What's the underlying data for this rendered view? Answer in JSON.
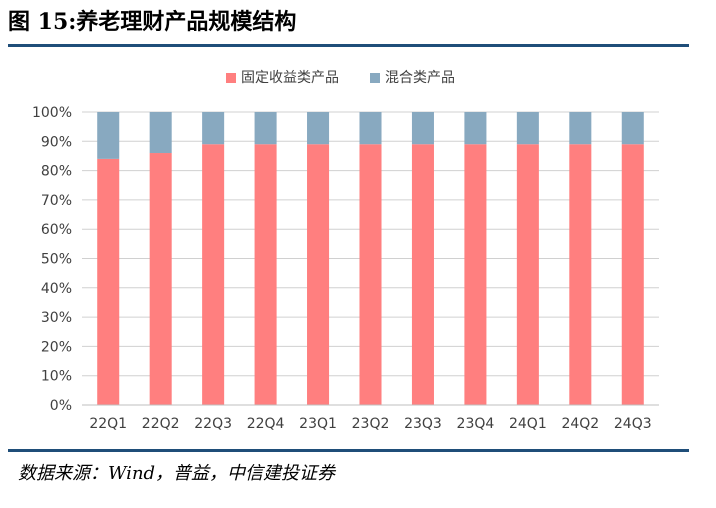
{
  "figure_title": "图 15:养老理财产品规模结构",
  "source_text": "数据来源：Wind，普益，中信建投证券",
  "colors": {
    "rule": "#1f4e79",
    "fixed_income": "#ff7f7f",
    "mixed": "#88a9c0",
    "grid": "#d0d0d0",
    "axis_text": "#404040"
  },
  "chart_data": {
    "type": "bar",
    "stacked": true,
    "percent_stacked": true,
    "categories": [
      "22Q1",
      "22Q2",
      "22Q3",
      "22Q4",
      "23Q1",
      "23Q2",
      "23Q3",
      "23Q4",
      "24Q1",
      "24Q2",
      "24Q3"
    ],
    "series": [
      {
        "name": "固定收益类产品",
        "color": "#ff7f7f",
        "values": [
          84,
          86,
          89,
          89,
          89,
          89,
          89,
          89,
          89,
          89,
          89
        ]
      },
      {
        "name": "混合类产品",
        "color": "#88a9c0",
        "values": [
          16,
          14,
          11,
          11,
          11,
          11,
          11,
          11,
          11,
          11,
          11
        ]
      }
    ],
    "ylim": [
      0,
      100
    ],
    "yticks": [
      "0%",
      "10%",
      "20%",
      "30%",
      "40%",
      "50%",
      "60%",
      "70%",
      "80%",
      "90%",
      "100%"
    ],
    "grid": true,
    "legend_position": "top"
  }
}
